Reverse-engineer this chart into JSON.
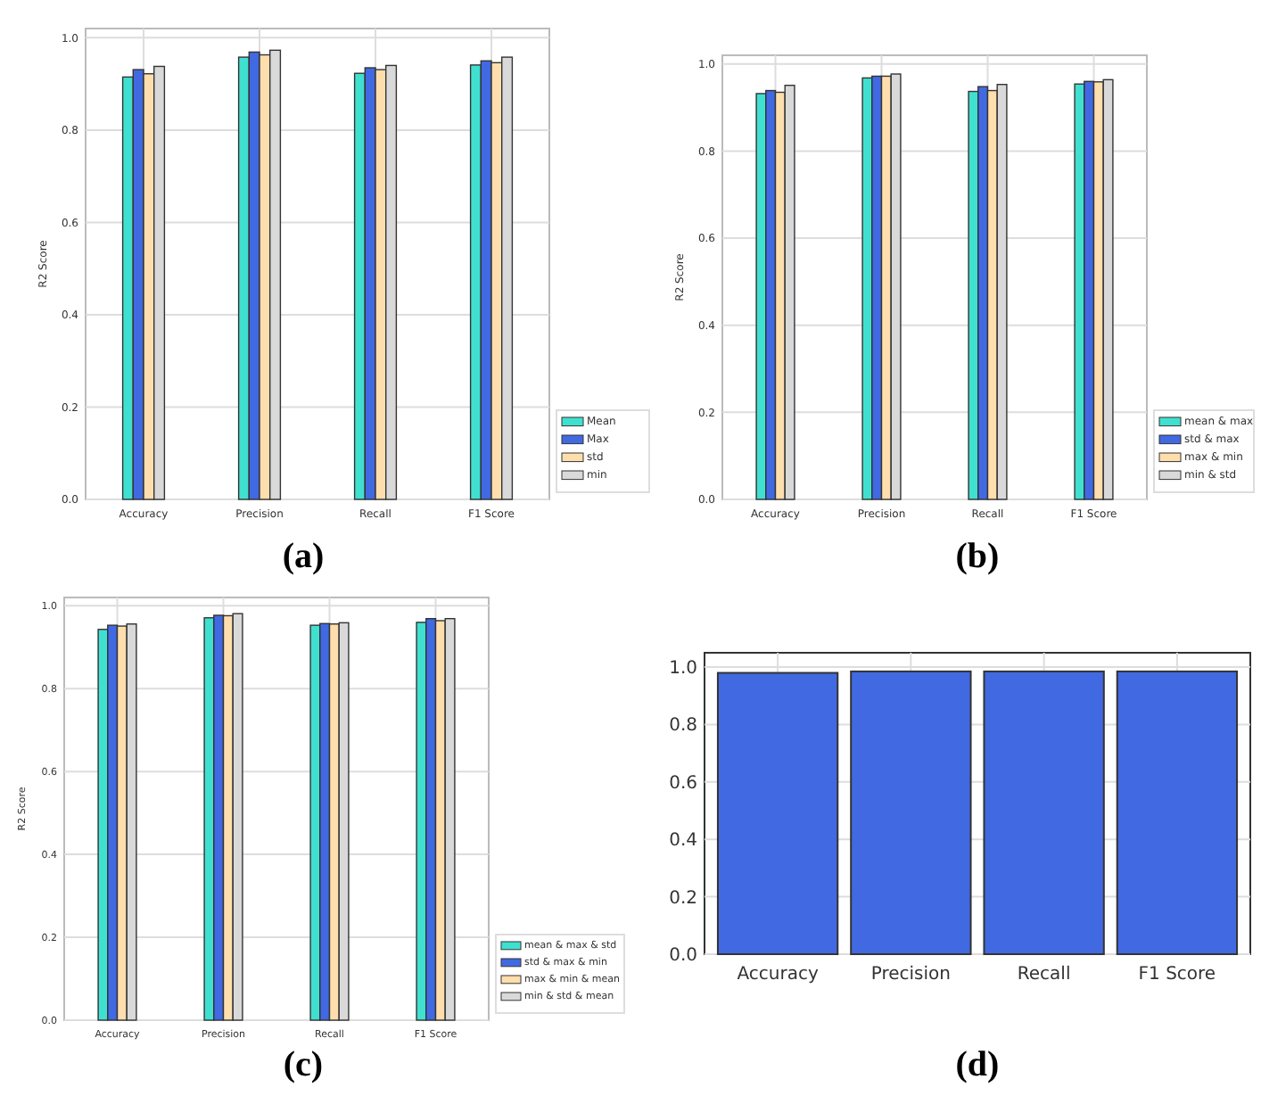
{
  "chart_data": [
    {
      "type": "bar",
      "title": "(a)",
      "ylabel": "R2 Score",
      "categories": [
        "Accuracy",
        "Precision",
        "Recall",
        "F1 Score"
      ],
      "ylim": [
        0,
        1.02
      ],
      "yticks": [
        {
          "value": 0,
          "label": "0.0"
        },
        {
          "value": 0.2,
          "label": "0.2"
        },
        {
          "value": 0.4,
          "label": "0.4"
        },
        {
          "value": 0.6,
          "label": "0.6"
        },
        {
          "value": 0.8,
          "label": "0.8"
        },
        {
          "value": 1,
          "label": "1.0"
        }
      ],
      "grid": true,
      "legend": "right",
      "series": [
        {
          "name": "Mean",
          "color": "#40e0d0",
          "values": [
            0.915,
            0.958,
            0.923,
            0.941
          ]
        },
        {
          "name": "Max",
          "color": "#4169e1",
          "values": [
            0.931,
            0.969,
            0.935,
            0.95
          ]
        },
        {
          "name": "std",
          "color": "#ffdead",
          "values": [
            0.922,
            0.963,
            0.931,
            0.946
          ]
        },
        {
          "name": "min",
          "color": "#d9d9d9",
          "values": [
            0.938,
            0.973,
            0.94,
            0.958
          ]
        }
      ]
    },
    {
      "type": "bar",
      "title": "(b)",
      "ylabel": "R2 Score",
      "categories": [
        "Accuracy",
        "Precision",
        "Recall",
        "F1 Score"
      ],
      "ylim": [
        0,
        1.02
      ],
      "yticks": [
        {
          "value": 0,
          "label": "0.0"
        },
        {
          "value": 0.2,
          "label": "0.2"
        },
        {
          "value": 0.4,
          "label": "0.4"
        },
        {
          "value": 0.6,
          "label": "0.6"
        },
        {
          "value": 0.8,
          "label": "0.8"
        },
        {
          "value": 1,
          "label": "1.0"
        }
      ],
      "grid": true,
      "legend": "right",
      "series": [
        {
          "name": "mean & max",
          "color": "#40e0d0",
          "values": [
            0.932,
            0.968,
            0.937,
            0.954
          ]
        },
        {
          "name": "std & max",
          "color": "#4169e1",
          "values": [
            0.939,
            0.972,
            0.948,
            0.96
          ]
        },
        {
          "name": "max & min",
          "color": "#ffdead",
          "values": [
            0.935,
            0.972,
            0.939,
            0.959
          ]
        },
        {
          "name": "min & std",
          "color": "#d9d9d9",
          "values": [
            0.951,
            0.977,
            0.953,
            0.964
          ]
        }
      ]
    },
    {
      "type": "bar",
      "title": "(c)",
      "ylabel": "R2 Score",
      "categories": [
        "Accuracy",
        "Precision",
        "Recall",
        "F1 Score"
      ],
      "ylim": [
        0,
        1.02
      ],
      "yticks": [
        {
          "value": 0,
          "label": "0.0"
        },
        {
          "value": 0.2,
          "label": "0.2"
        },
        {
          "value": 0.4,
          "label": "0.4"
        },
        {
          "value": 0.6,
          "label": "0.6"
        },
        {
          "value": 0.8,
          "label": "0.8"
        },
        {
          "value": 1,
          "label": "1.0"
        }
      ],
      "grid": true,
      "legend": "right",
      "series": [
        {
          "name": "mean & max & std",
          "color": "#40e0d0",
          "values": [
            0.943,
            0.971,
            0.953,
            0.96
          ]
        },
        {
          "name": "std & max & min",
          "color": "#4169e1",
          "values": [
            0.953,
            0.977,
            0.957,
            0.969
          ]
        },
        {
          "name": "max & min & mean",
          "color": "#ffdead",
          "values": [
            0.951,
            0.976,
            0.956,
            0.964
          ]
        },
        {
          "name": "min & std & mean",
          "color": "#d9d9d9",
          "values": [
            0.956,
            0.981,
            0.959,
            0.969
          ]
        }
      ]
    },
    {
      "type": "bar",
      "title": "(d)",
      "categories": [
        "Accuracy",
        "Precision",
        "Recall",
        "F1 Score"
      ],
      "ylim": [
        0,
        1.05
      ],
      "yticks": [
        {
          "value": 0,
          "label": "0.0"
        },
        {
          "value": 0.2,
          "label": "0.2"
        },
        {
          "value": 0.4,
          "label": "0.4"
        },
        {
          "value": 0.6,
          "label": "0.6"
        },
        {
          "value": 0.8,
          "label": "0.8"
        },
        {
          "value": 1,
          "label": "1.0"
        }
      ],
      "grid": true,
      "color": "#4169e1",
      "values": [
        0.98,
        0.985,
        0.985,
        0.985
      ]
    }
  ]
}
